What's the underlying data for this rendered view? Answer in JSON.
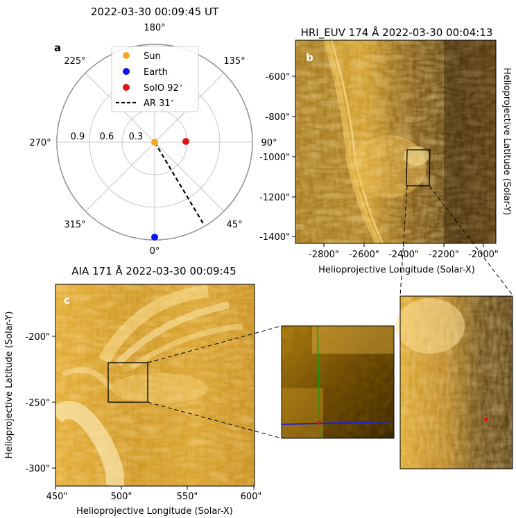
{
  "panel_a": {
    "title": "2022-03-30 00:09:45 UT",
    "label": "a",
    "angle_labels": {
      "top": "180°",
      "upper_left": "225°",
      "upper_right": "135°",
      "left": "270°",
      "right": "90°",
      "lower_left": "315°",
      "lower_right": "45°",
      "bottom": "0°"
    },
    "radial_labels": [
      "0.9",
      "0.6",
      "0.3"
    ],
    "legend": {
      "sun": "Sun",
      "earth": "Earth",
      "solo": "SolO 92$^\\circ$",
      "ar": "AR 31$^\\circ$"
    },
    "colors": {
      "sun": "#f5a623",
      "earth": "#1010ee",
      "solo": "#e01414",
      "ar": "#000000"
    }
  },
  "panel_b": {
    "title": "HRI_EUV 174 Å 2022-03-30  00:04:13",
    "label": "b",
    "xlabel": "Helioprojective Longitude (Solar-X)",
    "ylabel": "Helioprojective Latitude (Solar-Y)",
    "xticks": [
      "-2800\"",
      "-2600\"",
      "-2400\"",
      "-2200\"",
      "-2000\""
    ],
    "yticks": [
      "-600\"",
      "-800\"",
      "-1000\"",
      "-1200\"",
      "-1400\""
    ]
  },
  "panel_c": {
    "title": "AIA 171 Å 2022-03-30 00:09:45",
    "label": "c",
    "xlabel": "Helioprojective Longitude (Solar-X)",
    "ylabel": "Helioprojective Latitude (Solar-Y)",
    "xticks": [
      "450\"",
      "500\"",
      "550\"",
      "600\""
    ],
    "yticks": [
      "-200\"",
      "-250\"",
      "-300\""
    ]
  },
  "colors": {
    "euv_dark": "#3a2100",
    "euv_mid": "#b37a10",
    "euv_bright": "#ffd86b",
    "crosshair_blue": "#2020d0",
    "crosshair_green": "#10a010",
    "marker_red": "#e01414"
  }
}
